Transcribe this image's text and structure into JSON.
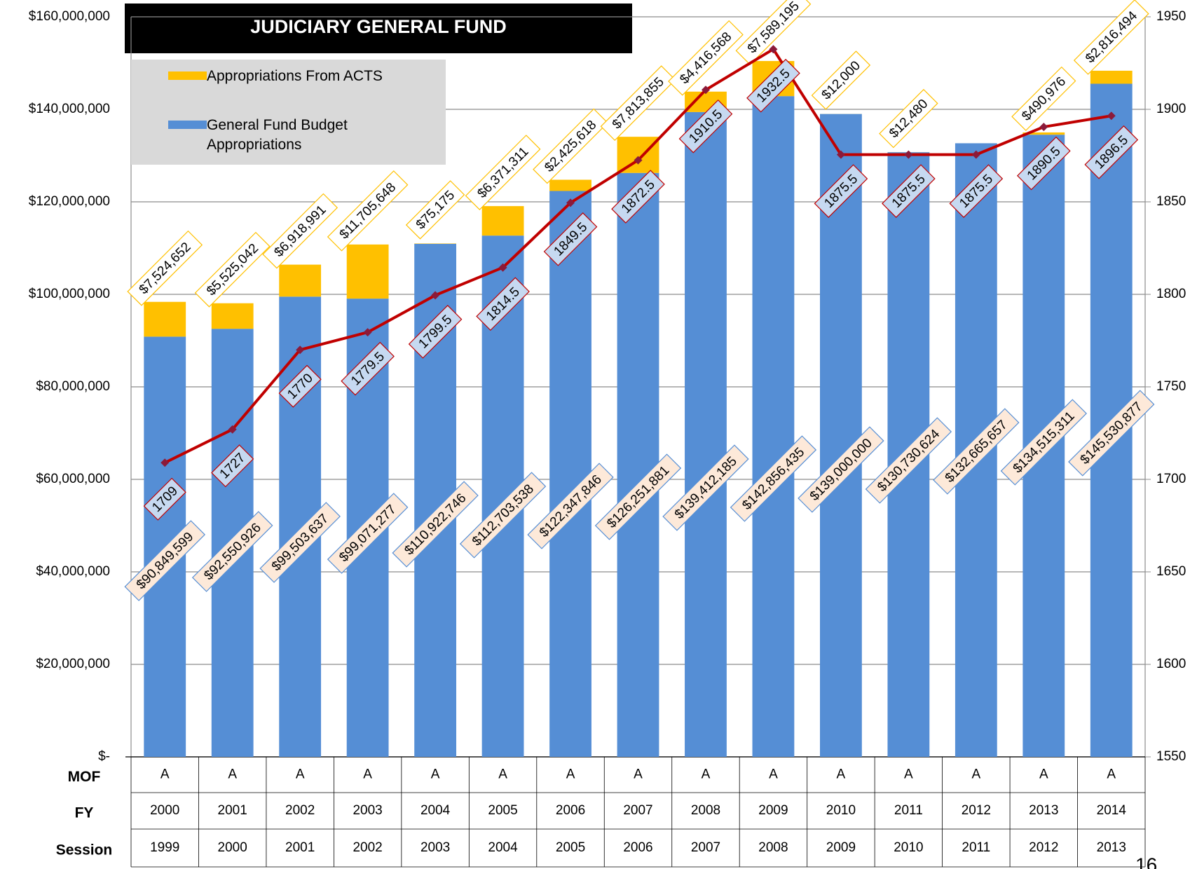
{
  "chart_data": {
    "type": "bar",
    "title": "JUDICIARY GENERAL FUND",
    "categories_label": "FY",
    "categories": [
      "2000",
      "2001",
      "2002",
      "2003",
      "2004",
      "2005",
      "2006",
      "2007",
      "2008",
      "2009",
      "2010",
      "2011",
      "2012",
      "2013",
      "2014"
    ],
    "mof": {
      "label": "MOF",
      "values": [
        "A",
        "A",
        "A",
        "A",
        "A",
        "A",
        "A",
        "A",
        "A",
        "A",
        "A",
        "A",
        "A",
        "A",
        "A"
      ]
    },
    "session": {
      "label": "Session",
      "values": [
        "1999",
        "2000",
        "2001",
        "2002",
        "2003",
        "2004",
        "2005",
        "2006",
        "2007",
        "2008",
        "2009",
        "2010",
        "2011",
        "2012",
        "2013"
      ]
    },
    "series": [
      {
        "name": "General Fund Budget Appropriations",
        "color": "#558ed5",
        "values": [
          90849599,
          92550926,
          99503637,
          99071277,
          110922746,
          112703538,
          122347846,
          126251881,
          139412185,
          142856435,
          139000000,
          130730624,
          132665657,
          134515311,
          145530877
        ],
        "value_labels": [
          "$90,849,599",
          "$92,550,926",
          "$99,503,637",
          "$99,071,277",
          "$110,922,746",
          "$112,703,538",
          "$122,347,846",
          "$126,251,881",
          "$139,412,185",
          "$142,856,435",
          "$139,000,000",
          "$130,730,624",
          "$132,665,657",
          "$134,515,311",
          "$145,530,877"
        ]
      },
      {
        "name": "Appropriations From ACTS",
        "color": "#ffc000",
        "values": [
          7524652,
          5525042,
          6918991,
          11705648,
          75175,
          6371311,
          2425618,
          7813855,
          4416568,
          7589195,
          12000,
          12480,
          null,
          490976,
          2816494
        ],
        "value_labels": [
          "$7,524,652",
          "$5,525,042",
          "$6,918,991",
          "$11,705,648",
          "$75,175",
          "$6,371,311",
          "$2,425,618",
          "$7,813,855",
          "$4,416,568",
          "$7,589,195",
          "$12,000",
          "$12,480",
          null,
          "$490,976",
          "$2,816,494"
        ]
      },
      {
        "type": "line",
        "axis": "y2",
        "color": "#c00000",
        "values": [
          1709,
          1727,
          1770,
          1779.5,
          1799.5,
          1814.5,
          1849.5,
          1872.5,
          1910.5,
          1932.5,
          1875.5,
          1875.5,
          1875.5,
          1890.5,
          1896.5
        ]
      }
    ],
    "ylim": [
      0,
      160000000
    ],
    "yticks": [
      {
        "value": 0,
        "label": "$-"
      },
      {
        "value": 20000000,
        "label": "$20,000,000"
      },
      {
        "value": 40000000,
        "label": "$40,000,000"
      },
      {
        "value": 60000000,
        "label": "$60,000,000"
      },
      {
        "value": 80000000,
        "label": "$80,000,000"
      },
      {
        "value": 100000000,
        "label": "$100,000,000"
      },
      {
        "value": 120000000,
        "label": "$120,000,000"
      },
      {
        "value": 140000000,
        "label": "$140,000,000"
      },
      {
        "value": 160000000,
        "label": "$160,000,000"
      }
    ],
    "y2lim": [
      1550,
      1950
    ],
    "y2ticks": [
      1550,
      1600,
      1650,
      1700,
      1750,
      1800,
      1850,
      1900,
      1950
    ],
    "grid": true,
    "legend": "top-left"
  },
  "page_number": "16"
}
